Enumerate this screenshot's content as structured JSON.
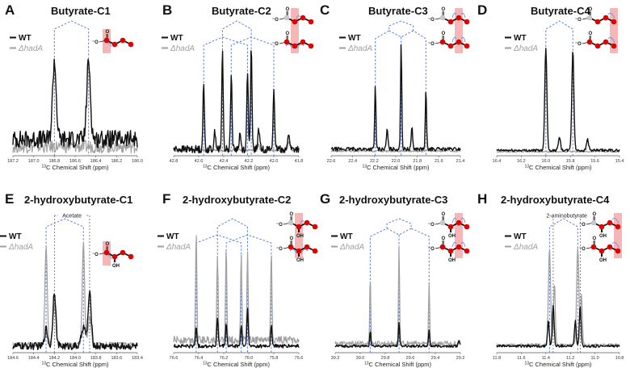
{
  "legend": {
    "wt": "WT",
    "ko": "ΔhadA",
    "wt_color": "#111111",
    "ko_color": "#a0a0a0"
  },
  "colors": {
    "guide": "#5b7fe0",
    "highlight": "#f4b6b6",
    "atom": "#e00000",
    "unlabeled_atom": "#c8c8c8",
    "arrow": "#6f8fe0",
    "ref_line": "#555555"
  },
  "xlabel": "13C Chemical Shift (ppm)",
  "chart_data": [
    {
      "panel": "A",
      "title": "Butyrate-C1",
      "type": "line",
      "xlabel": "13C Chemical Shift (ppm)",
      "xlim": [
        187.2,
        186.0
      ],
      "xticks": [
        "187.2",
        "187.0",
        "186.8",
        "186.6",
        "186.4",
        "186.2",
        "186.0"
      ],
      "guides": [
        186.8,
        186.47
      ],
      "guide_tree": "doublet",
      "series": [
        {
          "name": "WT",
          "peaks": [
            {
              "x": 186.8,
              "h": 0.62,
              "w": 0.025
            },
            {
              "x": 186.47,
              "h": 0.62,
              "w": 0.025
            }
          ],
          "noise": 0.07,
          "base": 0.12
        },
        {
          "name": "ΔhadA",
          "peaks": [],
          "noise": 0.05,
          "base": 0.06
        }
      ],
      "molecule": {
        "variant": "butyrate",
        "labels": [
          1
        ],
        "highlight": 1,
        "arrows": "c1"
      }
    },
    {
      "panel": "B",
      "title": "Butyrate-C2",
      "type": "line",
      "xlabel": "13C Chemical Shift (ppm)",
      "xlim": [
        42.8,
        41.8
      ],
      "xticks": [
        "42.8",
        "42.6",
        "42.4",
        "42.2",
        "42.0",
        "41.8"
      ],
      "guides": [
        42.56,
        42.41,
        42.34,
        42.21,
        42.18,
        42.0
      ],
      "guide_tree": "ddd",
      "series": [
        {
          "name": "WT",
          "peaks": [
            {
              "x": 42.56,
              "h": 0.52,
              "w": 0.008
            },
            {
              "x": 42.41,
              "h": 0.78,
              "w": 0.008
            },
            {
              "x": 42.34,
              "h": 0.62,
              "w": 0.008
            },
            {
              "x": 42.21,
              "h": 0.64,
              "w": 0.008
            },
            {
              "x": 42.18,
              "h": 0.8,
              "w": 0.008
            },
            {
              "x": 42.0,
              "h": 0.5,
              "w": 0.008
            },
            {
              "x": 42.47,
              "h": 0.14,
              "w": 0.01
            },
            {
              "x": 42.27,
              "h": 0.12,
              "w": 0.01
            },
            {
              "x": 42.12,
              "h": 0.16,
              "w": 0.01
            },
            {
              "x": 41.88,
              "h": 0.13,
              "w": 0.01
            }
          ],
          "noise": 0.03,
          "base": 0.04
        },
        {
          "name": "ΔhadA",
          "peaks": [
            {
              "x": 41.88,
              "h": 0.08,
              "w": 0.01
            },
            {
              "x": 42.12,
              "h": 0.05,
              "w": 0.01
            }
          ],
          "noise": 0.01,
          "base": 0.03
        }
      ],
      "molecule": {
        "variant": "butyrate-pair",
        "labels": [
          2
        ],
        "highlight": 2,
        "arrows": "c2"
      }
    },
    {
      "panel": "C",
      "title": "Butyrate-C3",
      "type": "line",
      "xlabel": "13C Chemical Shift (ppm)",
      "xlim": [
        22.6,
        21.4
      ],
      "xticks": [
        "22.6",
        "22.4",
        "22.2",
        "22.0",
        "21.8",
        "21.6",
        "21.4"
      ],
      "guides": [
        22.19,
        21.95,
        21.72
      ],
      "guide_tree": "triplet",
      "series": [
        {
          "name": "WT",
          "peaks": [
            {
              "x": 22.19,
              "h": 0.5,
              "w": 0.008
            },
            {
              "x": 21.95,
              "h": 0.85,
              "w": 0.008
            },
            {
              "x": 21.72,
              "h": 0.48,
              "w": 0.008
            },
            {
              "x": 22.08,
              "h": 0.16,
              "w": 0.01
            },
            {
              "x": 21.85,
              "h": 0.17,
              "w": 0.01
            }
          ],
          "noise": 0.015,
          "base": 0.04
        },
        {
          "name": "ΔhadA",
          "peaks": [],
          "noise": 0.008,
          "base": 0.025
        }
      ],
      "molecule": {
        "variant": "butyrate-pair",
        "labels": [
          3
        ],
        "highlight": 3,
        "arrows": "c3"
      }
    },
    {
      "panel": "D",
      "title": "Butyrate-C4",
      "type": "line",
      "xlabel": "13C Chemical Shift (ppm)",
      "xlim": [
        16.4,
        15.4
      ],
      "xticks": [
        "16.4",
        "16.2",
        "16.0",
        "15.8",
        "15.6",
        "15.4"
      ],
      "guides": [
        16.0,
        15.78
      ],
      "guide_tree": "doublet",
      "series": [
        {
          "name": "WT",
          "peaks": [
            {
              "x": 16.0,
              "h": 0.82,
              "w": 0.012
            },
            {
              "x": 15.78,
              "h": 0.8,
              "w": 0.012
            },
            {
              "x": 15.89,
              "h": 0.11,
              "w": 0.012
            },
            {
              "x": 15.66,
              "h": 0.09,
              "w": 0.012
            }
          ],
          "noise": 0.01,
          "base": 0.03
        },
        {
          "name": "ΔhadA",
          "peaks": [],
          "noise": 0.006,
          "base": 0.02
        }
      ],
      "molecule": {
        "variant": "butyrate-pair",
        "labels": [
          4
        ],
        "highlight": 4,
        "arrows": "c4"
      }
    },
    {
      "panel": "E",
      "title": "2-hydroxybutyrate-C1",
      "type": "line",
      "xlabel": "13C Chemical Shift (ppm)",
      "xlim": [
        184.6,
        183.4
      ],
      "xticks": [
        "184.6",
        "184.4",
        "184.2",
        "184.0",
        "183.8",
        "183.6",
        "183.4"
      ],
      "guides": [
        184.28,
        183.92
      ],
      "guide_tree": "doublet",
      "ref_lines": [
        184.2,
        183.86
      ],
      "ref_label": "Acetate",
      "series": [
        {
          "name": "WT",
          "peaks": [
            {
              "x": 184.2,
              "h": 0.45,
              "w": 0.02
            },
            {
              "x": 183.86,
              "h": 0.42,
              "w": 0.022
            },
            {
              "x": 184.28,
              "h": 0.14,
              "w": 0.02
            },
            {
              "x": 183.92,
              "h": 0.16,
              "w": 0.025
            }
          ],
          "noise": 0.03,
          "base": 0.04
        },
        {
          "name": "ΔhadA",
          "peaks": [
            {
              "x": 184.28,
              "h": 0.8,
              "w": 0.016
            },
            {
              "x": 183.92,
              "h": 0.82,
              "w": 0.016
            },
            {
              "x": 184.2,
              "h": 0.32,
              "w": 0.02
            },
            {
              "x": 183.86,
              "h": 0.22,
              "w": 0.022
            }
          ],
          "noise": 0.02,
          "base": 0.05
        }
      ],
      "molecule": {
        "variant": "hb",
        "labels": [
          1
        ],
        "highlight": 1,
        "arrows": "c1"
      }
    },
    {
      "panel": "F",
      "title": "2-hydroxybutyrate-C2",
      "type": "line",
      "xlabel": "13C Chemical Shift (ppm)",
      "xlim": [
        76.6,
        75.6
      ],
      "xticks": [
        "76.6",
        "76.4",
        "76.2",
        "76.0",
        "75.8",
        "75.6"
      ],
      "guides": [
        76.42,
        76.25,
        76.18,
        76.06,
        76.01,
        75.82
      ],
      "guide_tree": "ddd",
      "series": [
        {
          "name": "WT",
          "peaks": [
            {
              "x": 76.42,
              "h": 0.16,
              "w": 0.008
            },
            {
              "x": 76.25,
              "h": 0.22,
              "w": 0.008
            },
            {
              "x": 76.18,
              "h": 0.18,
              "w": 0.008
            },
            {
              "x": 76.06,
              "h": 0.16,
              "w": 0.008
            },
            {
              "x": 76.01,
              "h": 0.3,
              "w": 0.008
            },
            {
              "x": 75.82,
              "h": 0.17,
              "w": 0.008
            }
          ],
          "noise": 0.015,
          "base": 0.04
        },
        {
          "name": "ΔhadA",
          "peaks": [
            {
              "x": 76.42,
              "h": 0.88,
              "w": 0.007
            },
            {
              "x": 76.25,
              "h": 0.7,
              "w": 0.007
            },
            {
              "x": 76.18,
              "h": 0.75,
              "w": 0.007
            },
            {
              "x": 76.06,
              "h": 0.72,
              "w": 0.007
            },
            {
              "x": 76.01,
              "h": 0.71,
              "w": 0.007
            },
            {
              "x": 75.82,
              "h": 0.72,
              "w": 0.007
            }
          ],
          "noise": 0.03,
          "base": 0.09
        }
      ],
      "molecule": {
        "variant": "hb-pair",
        "labels": [
          2
        ],
        "highlight": 2,
        "arrows": "c2"
      }
    },
    {
      "panel": "G",
      "title": "2-hydroxybutyrate-C3",
      "type": "line",
      "xlabel": "13C Chemical Shift (ppm)",
      "xlim": [
        30.2,
        29.2
      ],
      "xticks": [
        "30.2",
        "30.0",
        "29.8",
        "29.6",
        "29.4",
        "29.2"
      ],
      "guides": [
        29.92,
        29.69,
        29.45
      ],
      "guide_tree": "triplet",
      "series": [
        {
          "name": "WT",
          "peaks": [
            {
              "x": 29.92,
              "h": 0.12,
              "w": 0.007
            },
            {
              "x": 29.69,
              "h": 0.2,
              "w": 0.007
            },
            {
              "x": 29.45,
              "h": 0.12,
              "w": 0.007
            },
            {
              "x": 29.21,
              "h": 0.05,
              "w": 0.008
            }
          ],
          "noise": 0.01,
          "base": 0.04
        },
        {
          "name": "ΔhadA",
          "peaks": [
            {
              "x": 29.92,
              "h": 0.55,
              "w": 0.006
            },
            {
              "x": 29.69,
              "h": 0.8,
              "w": 0.006
            },
            {
              "x": 29.45,
              "h": 0.5,
              "w": 0.006
            }
          ],
          "noise": 0.02,
          "base": 0.06
        }
      ],
      "molecule": {
        "variant": "hb-pair",
        "labels": [
          3
        ],
        "highlight": 3,
        "arrows": "c3"
      }
    },
    {
      "panel": "H",
      "title": "2-hydroxybutyrate-C4",
      "type": "line",
      "xlabel": "13C Chemical Shift (ppm)",
      "xlim": [
        11.8,
        10.8
      ],
      "xticks": [
        "11.8",
        "11.6",
        "11.4",
        "11.2",
        "11.0",
        "10.8"
      ],
      "guides": [
        11.37,
        11.14
      ],
      "guide_tree": "doublet",
      "ref_lines": [
        11.34,
        11.12
      ],
      "ref_label": "2-aminobutyrate",
      "series": [
        {
          "name": "WT",
          "peaks": [
            {
              "x": 11.34,
              "h": 0.33,
              "w": 0.01
            },
            {
              "x": 11.12,
              "h": 0.33,
              "w": 0.01
            },
            {
              "x": 11.38,
              "h": 0.2,
              "w": 0.01
            },
            {
              "x": 11.16,
              "h": 0.2,
              "w": 0.01
            }
          ],
          "noise": 0.01,
          "base": 0.04
        },
        {
          "name": "ΔhadA",
          "peaks": [
            {
              "x": 11.37,
              "h": 0.78,
              "w": 0.013
            },
            {
              "x": 11.14,
              "h": 0.78,
              "w": 0.013
            },
            {
              "x": 11.33,
              "h": 0.5,
              "w": 0.01
            },
            {
              "x": 11.11,
              "h": 0.4,
              "w": 0.01
            }
          ],
          "noise": 0.01,
          "base": 0.05
        }
      ],
      "molecule": {
        "variant": "hb-pair",
        "labels": [
          4
        ],
        "highlight": 4,
        "arrows": "c4"
      }
    }
  ],
  "panel_labels": [
    "A",
    "B",
    "C",
    "D",
    "E",
    "F",
    "G",
    "H"
  ]
}
